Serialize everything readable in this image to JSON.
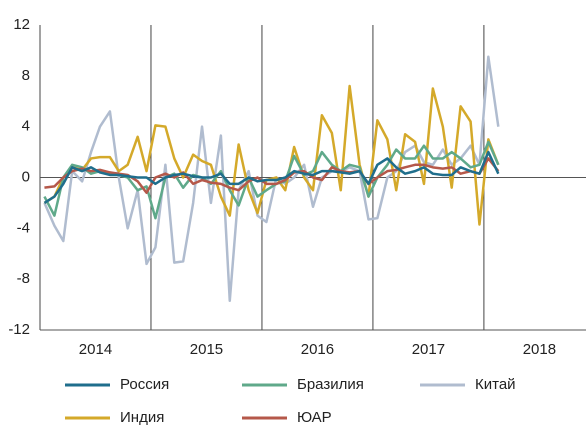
{
  "chart_data": {
    "type": "line",
    "x": [
      2014.04,
      2014.13,
      2014.21,
      2014.29,
      2014.38,
      2014.46,
      2014.54,
      2014.63,
      2014.71,
      2014.79,
      2014.88,
      2014.96,
      2015.04,
      2015.13,
      2015.21,
      2015.29,
      2015.38,
      2015.46,
      2015.54,
      2015.63,
      2015.71,
      2015.79,
      2015.88,
      2015.96,
      2016.04,
      2016.13,
      2016.21,
      2016.29,
      2016.38,
      2016.46,
      2016.54,
      2016.63,
      2016.71,
      2016.79,
      2016.88,
      2016.96,
      2017.04,
      2017.13,
      2017.21,
      2017.29,
      2017.38,
      2017.46,
      2017.54,
      2017.63,
      2017.71,
      2017.79,
      2017.88,
      2017.96,
      2018.04,
      2018.13
    ],
    "series": [
      {
        "name": "Китай",
        "color": "#b0bccf",
        "values": [
          -2,
          -3.8,
          -5,
          0.5,
          -0.3,
          2,
          4,
          5.2,
          0,
          -4,
          -1,
          -6.8,
          -5.5,
          1,
          -6.7,
          -6.6,
          -2,
          4,
          -2,
          3.3,
          -9.7,
          -1,
          0.5,
          -3,
          -3.5,
          0,
          -0.5,
          0,
          1,
          -2.3,
          0,
          0.5,
          0.5,
          0.8,
          0.5,
          -3.3,
          -3.2,
          0,
          0.5,
          2,
          2.5,
          1.2,
          1,
          2.2,
          1,
          1.5,
          2.5,
          1,
          9.5,
          4
        ]
      },
      {
        "name": "Индия",
        "color": "#d4a92a",
        "values": [
          -2,
          -1.5,
          0,
          0.8,
          0.6,
          1.5,
          1.6,
          1.6,
          0.5,
          1,
          3.2,
          0.5,
          4.1,
          4,
          1.5,
          0,
          1.8,
          1.3,
          1,
          -1.5,
          -3,
          2.6,
          -1,
          -2.8,
          -0.2,
          0,
          -1,
          2.4,
          0,
          -1,
          4.9,
          3.5,
          -1,
          7.2,
          1,
          -1.5,
          4.5,
          3,
          -1,
          3.4,
          2.8,
          -0.5,
          7,
          4,
          -0.8,
          5.6,
          4.4,
          -3.7,
          3,
          1
        ]
      },
      {
        "name": "Бразилия",
        "color": "#5fa98a",
        "values": [
          -1.5,
          -3,
          0,
          1,
          0.8,
          0.3,
          0.5,
          0.3,
          0.2,
          0,
          -1,
          -0.7,
          -3.2,
          0,
          0.3,
          -0.8,
          0.2,
          0,
          -0.5,
          0.5,
          -1,
          -2.2,
          0,
          -1.5,
          -1,
          -0.5,
          -0.3,
          1.7,
          0.2,
          0.5,
          2,
          1,
          0.5,
          1,
          0.8,
          -1.5,
          0,
          1,
          2.2,
          1.5,
          1.5,
          2.5,
          1.5,
          1.5,
          2,
          1.5,
          0.8,
          1,
          2.8,
          1
        ]
      },
      {
        "name": "ЮАР",
        "color": "#b5584a",
        "values": [
          -0.8,
          -0.7,
          0,
          0.5,
          0.7,
          0.5,
          0.6,
          0.4,
          0.3,
          0.2,
          -0.3,
          -1.2,
          0,
          0.3,
          0,
          0.4,
          -0.5,
          -0.2,
          -0.4,
          -0.5,
          -0.8,
          -1,
          -0.3,
          0,
          -0.5,
          -0.5,
          -0.2,
          0.4,
          0.5,
          0,
          -0.2,
          0.8,
          0.5,
          0.4,
          0.5,
          -0.5,
          0,
          0.5,
          0.6,
          0.8,
          1,
          1,
          0.8,
          0.7,
          0.8,
          0.3,
          0.5,
          0.3,
          1.5,
          0.5
        ]
      },
      {
        "name": "Россия",
        "color": "#1f6e8c",
        "values": [
          -2,
          -1.5,
          -0.5,
          0.8,
          0.5,
          0.8,
          0.4,
          0.2,
          0.2,
          0.1,
          0,
          0,
          -0.5,
          0,
          0.2,
          0.3,
          0.1,
          0,
          0,
          0.3,
          -0.5,
          -0.5,
          0,
          -0.3,
          -0.2,
          -0.2,
          0,
          0.5,
          0.3,
          0.2,
          0.5,
          0.5,
          0.4,
          0.3,
          0.5,
          -0.5,
          1,
          1.5,
          0.8,
          0.3,
          0.5,
          0.8,
          0.3,
          0.2,
          0.2,
          0.8,
          0.5,
          0.3,
          2,
          0.3
        ]
      }
    ],
    "xlim": [
      2014,
      2018.92
    ],
    "xticks": [
      {
        "value": 2014.5,
        "label": "2014"
      },
      {
        "value": 2015.5,
        "label": "2015"
      },
      {
        "value": 2016.5,
        "label": "2016"
      },
      {
        "value": 2017.5,
        "label": "2017"
      },
      {
        "value": 2018.5,
        "label": "2018"
      }
    ],
    "xgrid": [
      2014,
      2015,
      2016,
      2017,
      2018
    ],
    "ylim": [
      -12,
      12
    ],
    "yticks": [
      12,
      8,
      4,
      0,
      -4,
      -8,
      -12
    ]
  }
}
